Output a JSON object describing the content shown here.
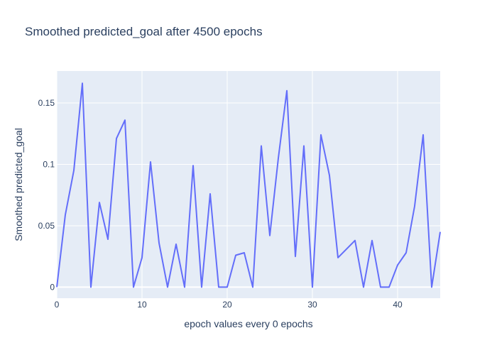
{
  "chart_data": {
    "type": "line",
    "title": "Smoothed predicted_goal after 4500 epochs",
    "xlabel": "epoch values every 0 epochs",
    "ylabel": "Smoothed predicted_goal",
    "xlim": [
      0,
      45
    ],
    "ylim": [
      -0.009,
      0.176
    ],
    "x_ticks": [
      0,
      10,
      20,
      30,
      40
    ],
    "x_tick_labels": [
      "0",
      "10",
      "20",
      "30",
      "40"
    ],
    "y_ticks": [
      0,
      0.05,
      0.1,
      0.15
    ],
    "y_tick_labels": [
      "0",
      "0.05",
      "0.1",
      "0.15"
    ],
    "grid": true,
    "colors": {
      "line": "#636efa",
      "plot_bg": "#e5ecf6",
      "grid": "#ffffff",
      "text": "#2a3f5f"
    },
    "series": [
      {
        "x": [
          0,
          1,
          2,
          3,
          4,
          5,
          6,
          7,
          8,
          9,
          10,
          11,
          12,
          13,
          14,
          15,
          16,
          17,
          18,
          19,
          20,
          21,
          22,
          23,
          24,
          25,
          26,
          27,
          28,
          29,
          30,
          31,
          32,
          33,
          34,
          35,
          36,
          37,
          38,
          39,
          40,
          41,
          42,
          43,
          44,
          45
        ],
        "values": [
          0,
          0.059,
          0.095,
          0.166,
          0,
          0.069,
          0.039,
          0.121,
          0.136,
          0,
          0.024,
          0.102,
          0.036,
          0,
          0.035,
          0,
          0.099,
          0,
          0.076,
          0,
          0,
          0.026,
          0.028,
          0,
          0.115,
          0.042,
          0.105,
          0.16,
          0.025,
          0.115,
          0,
          0.124,
          0.091,
          0.024,
          0.031,
          0.038,
          0,
          0.038,
          0,
          0,
          0.018,
          0.028,
          0.066,
          0.124,
          0,
          0.045
        ]
      }
    ]
  }
}
